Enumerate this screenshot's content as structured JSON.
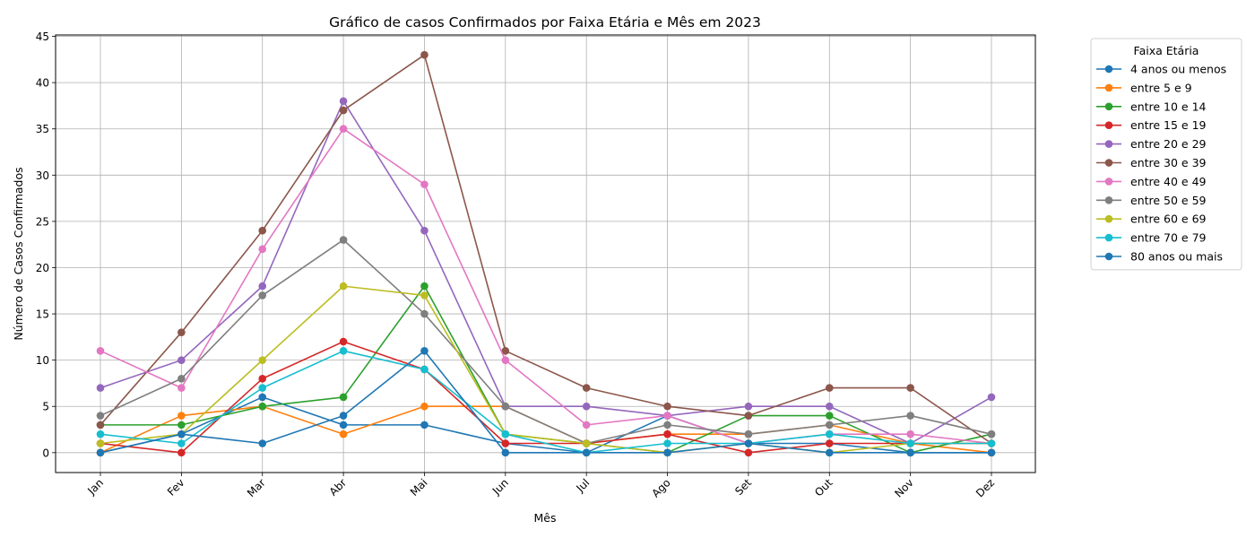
{
  "chart_data": {
    "type": "line",
    "title": "Gráfico de casos Confirmados por Faixa Etária e Mês em 2023",
    "xlabel": "Mês",
    "ylabel": "Número de Casos Confirmados",
    "categories": [
      "Jan",
      "Fev",
      "Mar",
      "Abr",
      "Mai",
      "Jun",
      "Jul",
      "Ago",
      "Set",
      "Out",
      "Nov",
      "Dez"
    ],
    "yticks": [
      "0",
      "5",
      "10",
      "15",
      "20",
      "25",
      "30",
      "35",
      "40",
      "45"
    ],
    "ylim": [
      -2.15,
      45.15
    ],
    "grid": true,
    "legend_title": "Faixa Etária",
    "legend_position": "outside-right",
    "series": [
      {
        "name": "4 anos ou menos",
        "color": "#1f77b4",
        "values": [
          0,
          2,
          6,
          3,
          3,
          1,
          0,
          4,
          1,
          1,
          0,
          0
        ]
      },
      {
        "name": "entre 5 e 9",
        "color": "#ff7f0e",
        "values": [
          0,
          4,
          5,
          2,
          5,
          5,
          1,
          2,
          2,
          3,
          1,
          0
        ]
      },
      {
        "name": "entre 10 e 14",
        "color": "#2ca02c",
        "values": [
          3,
          3,
          5,
          6,
          18,
          2,
          1,
          0,
          4,
          4,
          0,
          2
        ]
      },
      {
        "name": "entre 15 e 19",
        "color": "#d62728",
        "values": [
          1,
          0,
          8,
          12,
          9,
          1,
          1,
          2,
          0,
          1,
          1,
          1
        ]
      },
      {
        "name": "entre 20 e 29",
        "color": "#9467bd",
        "values": [
          7,
          10,
          18,
          38,
          24,
          5,
          5,
          4,
          5,
          5,
          1,
          6
        ]
      },
      {
        "name": "entre 30 e 39",
        "color": "#8c564b",
        "values": [
          3,
          13,
          24,
          37,
          43,
          11,
          7,
          5,
          4,
          7,
          7,
          1
        ]
      },
      {
        "name": "entre 40 e 49",
        "color": "#e377c2",
        "values": [
          11,
          7,
          22,
          35,
          29,
          10,
          3,
          4,
          1,
          2,
          2,
          1
        ]
      },
      {
        "name": "entre 50 e 59",
        "color": "#7f7f7f",
        "values": [
          4,
          8,
          17,
          23,
          15,
          5,
          1,
          3,
          2,
          3,
          4,
          2
        ]
      },
      {
        "name": "entre 60 e 69",
        "color": "#bcbd22",
        "values": [
          1,
          2,
          10,
          18,
          17,
          2,
          1,
          0,
          1,
          0,
          1,
          1
        ]
      },
      {
        "name": "entre 70 e 79",
        "color": "#17becf",
        "values": [
          2,
          1,
          7,
          11,
          9,
          2,
          0,
          1,
          1,
          2,
          1,
          1
        ]
      },
      {
        "name": "80 anos ou mais",
        "color": "#1f77b4",
        "values": [
          0,
          2,
          1,
          4,
          11,
          0,
          0,
          0,
          1,
          0,
          0,
          0
        ]
      }
    ]
  }
}
